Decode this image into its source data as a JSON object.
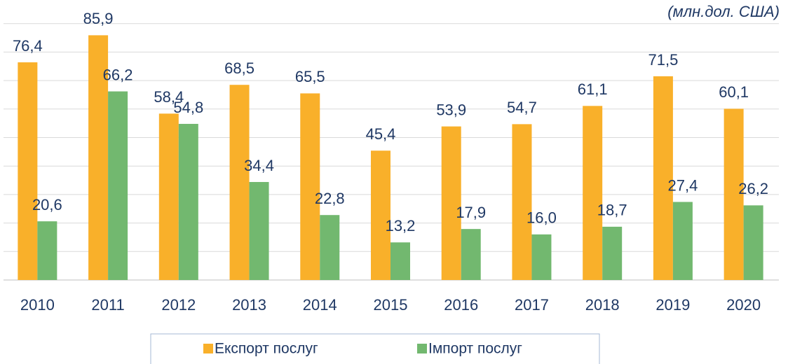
{
  "chart_data": {
    "type": "bar",
    "subtitle": "(млн.дол. США)",
    "categories": [
      "2010",
      "2011",
      "2012",
      "2013",
      "2014",
      "2015",
      "2016",
      "2017",
      "2018",
      "2019",
      "2020"
    ],
    "series": [
      {
        "name": "Експорт послуг",
        "color": "#f9b02a",
        "values": [
          76.4,
          85.9,
          58.4,
          68.5,
          65.5,
          45.4,
          53.9,
          54.7,
          61.1,
          71.5,
          60.1
        ],
        "value_labels": [
          "76,4",
          "85,9",
          "58,4",
          "68,5",
          "65,5",
          "45,4",
          "53,9",
          "54,7",
          "61,1",
          "71,5",
          "60,1"
        ]
      },
      {
        "name": "Імпорт послуг",
        "color": "#72b86f",
        "values": [
          20.6,
          66.2,
          54.8,
          34.4,
          22.8,
          13.2,
          17.9,
          16.0,
          18.7,
          27.4,
          26.2
        ],
        "value_labels": [
          "20,6",
          "66,2",
          "54,8",
          "34,4",
          "22,8",
          "13,2",
          "17,9",
          "16,0",
          "18,7",
          "27,4",
          "26,2"
        ]
      }
    ],
    "ylim": [
      0,
      90
    ],
    "yticks": [
      0,
      10,
      20,
      30,
      40,
      50,
      60,
      70,
      80,
      90
    ],
    "grid": true,
    "legend": "bottom"
  }
}
